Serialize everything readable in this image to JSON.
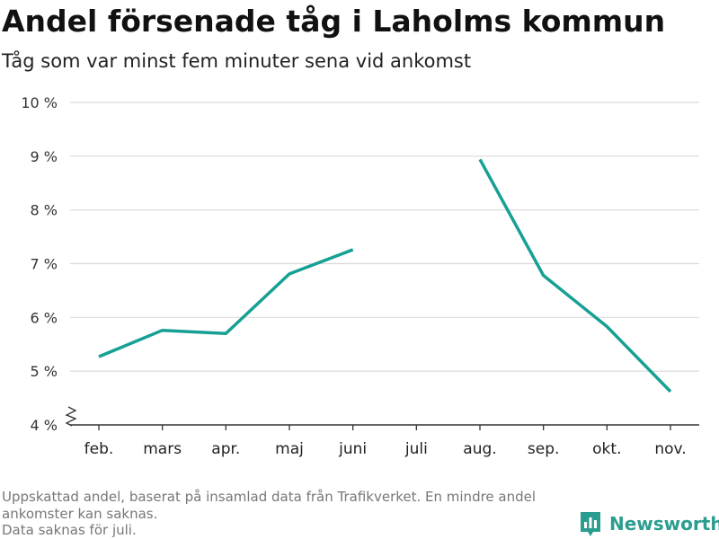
{
  "header": {
    "title": "Andel försenade tåg i Laholms kommun",
    "subtitle": "Tåg som var minst fem minuter sena vid ankomst"
  },
  "footer": {
    "note_line1": "Uppskattad andel, baserat på insamlad data från Trafikverket. En mindre andel ankomster kan saknas.",
    "note_line2": "Data saknas för juli.",
    "brand": "Newsworthy"
  },
  "colors": {
    "line": "#16a094",
    "brand": "#2a9d8f",
    "grid": "#d9d9d9"
  },
  "chart_data": {
    "type": "line",
    "title": "Andel försenade tåg i Laholms kommun",
    "subtitle": "Tåg som var minst fem minuter sena vid ankomst",
    "categories": [
      "feb.",
      "mars",
      "apr.",
      "maj",
      "juni",
      "juli",
      "aug.",
      "sep.",
      "okt.",
      "nov."
    ],
    "series": [
      {
        "values": [
          5.27,
          5.76,
          5.7,
          6.81,
          7.26,
          null,
          8.94,
          6.78,
          5.83,
          4.62
        ]
      }
    ],
    "y_ticks": [
      "4 %",
      "5 %",
      "6 %",
      "7 %",
      "8 %",
      "9 %",
      "10 %"
    ],
    "ylim": [
      4,
      10
    ],
    "y_unit": "%",
    "y_axis_break": true,
    "grid": true,
    "legend": "none"
  }
}
